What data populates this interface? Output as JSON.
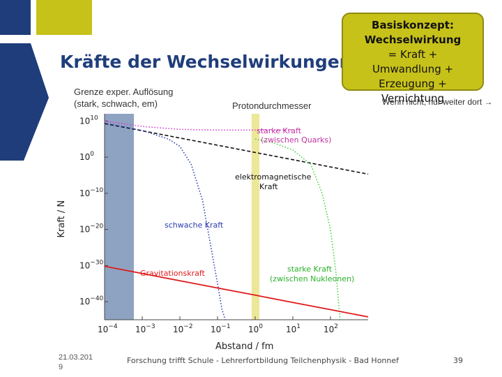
{
  "colors": {
    "accent_blue": "#1f3d7a",
    "accent_yellow": "#c7c21a",
    "grey_band": "#8ea3c2"
  },
  "title": "Kräfte der Wechselwirkungen",
  "callout": {
    "heading": "Basiskonzept:",
    "heading2": "Wechselwirkung",
    "line1": "= Kraft +",
    "line2": "Umwandlung +",
    "line3": "Erzeugung +",
    "line4": "Vernichtung"
  },
  "notes": {
    "left_line1": "Grenze exper. Auflösung",
    "left_line2": "(stark, schwach, em)",
    "mid": "Protondurchmesser",
    "right": "Wenn nicht, nur weiter dort →"
  },
  "footer": {
    "date": "21.03.2019",
    "center": "Forschung trifft Schule - Lehrerfortbildung Teilchenphysik - Bad Honnef",
    "page": "39"
  },
  "chart_data": {
    "type": "line",
    "title": "",
    "xlabel": "Abstand / fm",
    "ylabel": "Kraft / N",
    "x_scale": "log",
    "y_scale": "log",
    "xlim": [
      0.0001,
      1000
    ],
    "ylim": [
      1e-45,
      1000000000000.0
    ],
    "x_ticks": [
      {
        "exp": "−4",
        "value": 0.0001
      },
      {
        "exp": "−3",
        "value": 0.001
      },
      {
        "exp": "−2",
        "value": 0.01
      },
      {
        "exp": "−1",
        "value": 0.1
      },
      {
        "exp": "0",
        "value": 1
      },
      {
        "exp": "1",
        "value": 10
      },
      {
        "exp": "2",
        "value": 100
      }
    ],
    "y_ticks": [
      {
        "exp": "10",
        "value": 10000000000.0
      },
      {
        "exp": "0",
        "value": 1
      },
      {
        "exp": "−10",
        "value": 1e-10
      },
      {
        "exp": "−20",
        "value": 1e-20
      },
      {
        "exp": "−30",
        "value": 1e-30
      },
      {
        "exp": "−40",
        "value": 1e-40
      }
    ],
    "bands": [
      {
        "name": "resolution_limit",
        "x": [
          0.0001,
          0.0006
        ],
        "color": "#8ea3c2"
      },
      {
        "name": "proton_diameter",
        "x": [
          0.8,
          1.3
        ],
        "color": "#ede79a"
      }
    ],
    "series": [
      {
        "name": "starke Kraft (zwischen Quarks)",
        "color": "#d43ad4",
        "style": "dotted",
        "x": [
          0.0001,
          0.001,
          0.01,
          0.1,
          1,
          10
        ],
        "y_exp": [
          10,
          8.5,
          7.7,
          7.5,
          7.5,
          7.5
        ]
      },
      {
        "name": "elektromagnetische Kraft",
        "color": "#111111",
        "style": "dashed",
        "x": [
          0.0001,
          0.001,
          0.01,
          0.1,
          1,
          10,
          100,
          1000
        ],
        "y_exp": [
          9.3,
          7.3,
          5.3,
          3.3,
          1.3,
          -0.7,
          -2.7,
          -4.7
        ]
      },
      {
        "name": "schwache Kraft",
        "color": "#2b3bb0",
        "style": "dotted",
        "x": [
          0.0001,
          0.001,
          0.005,
          0.01,
          0.02,
          0.04,
          0.07,
          0.1,
          0.13,
          0.16
        ],
        "y_exp": [
          9.4,
          7.4,
          5,
          3,
          -2,
          -12,
          -26,
          -35,
          -42,
          -45
        ]
      },
      {
        "name": "starke Kraft (zwischen Nukleonen)",
        "color": "#3fd43f",
        "style": "dotted",
        "x": [
          1,
          3,
          10,
          30,
          60,
          100,
          140,
          180
        ],
        "y_exp": [
          5,
          4,
          2,
          -2,
          -10,
          -20,
          -32,
          -45
        ]
      },
      {
        "name": "Gravitationskraft",
        "color": "#e01a1a",
        "style": "solid",
        "x": [
          0.0001,
          0.001,
          0.01,
          0.1,
          1,
          10,
          100,
          1000
        ],
        "y_exp": [
          -30.2,
          -32.2,
          -34.2,
          -36.2,
          -38.2,
          -40.2,
          -42.2,
          -44.2
        ]
      }
    ],
    "labels": {
      "strong_quarks_1": "starke Kraft",
      "strong_quarks_2": "(zwischen Quarks)",
      "em_1": "elektromagnetische",
      "em_2": "Kraft",
      "weak": "schwache Kraft",
      "grav": "Gravitationskraft",
      "strong_nucl_1": "starke Kraft",
      "strong_nucl_2": "(zwischen Nukleonen)"
    }
  }
}
